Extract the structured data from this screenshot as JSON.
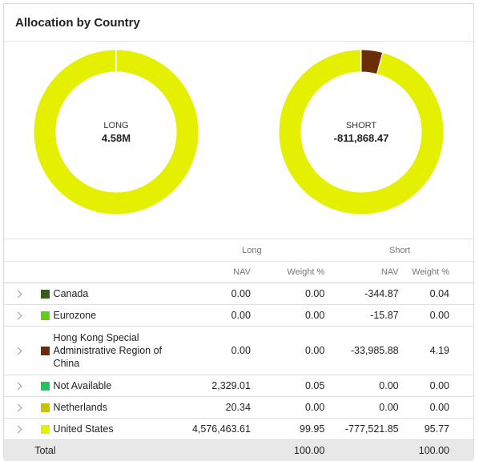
{
  "title": "Allocation by Country",
  "charts": {
    "long": {
      "label": "LONG",
      "value": "4.58M",
      "color": "#e5f000",
      "slices": [
        {
          "country": "United States",
          "weight": 99.95,
          "color": "#e5f000"
        },
        {
          "country": "Not Available",
          "weight": 0.05,
          "color": "#1fc75a"
        }
      ]
    },
    "short": {
      "label": "SHORT",
      "value": "-811,868.47",
      "slices": [
        {
          "country": "Hong Kong Special Administrative Region of China",
          "weight": 4.19,
          "color": "#6b2d05"
        },
        {
          "country": "United States",
          "weight": 95.77,
          "color": "#e5f000"
        },
        {
          "country": "Canada",
          "weight": 0.04,
          "color": "#355e1c"
        }
      ]
    }
  },
  "table": {
    "groups": {
      "long": "Long",
      "short": "Short"
    },
    "columns": {
      "nav": "NAV",
      "weight": "Weight %"
    },
    "rows": [
      {
        "name": "Canada",
        "color": "#355e1c",
        "long_nav": "0.00",
        "long_weight": "0.00",
        "short_nav": "-344.87",
        "short_weight": "0.04"
      },
      {
        "name": "Eurozone",
        "color": "#66cc1a",
        "long_nav": "0.00",
        "long_weight": "0.00",
        "short_nav": "-15.87",
        "short_weight": "0.00"
      },
      {
        "name": "Hong Kong Special Administrative Region of China",
        "color": "#6b2d05",
        "long_nav": "0.00",
        "long_weight": "0.00",
        "short_nav": "-33,985.88",
        "short_weight": "4.19"
      },
      {
        "name": "Not Available",
        "color": "#1fc75a",
        "long_nav": "2,329.01",
        "long_weight": "0.05",
        "short_nav": "0.00",
        "short_weight": "0.00"
      },
      {
        "name": "Netherlands",
        "color": "#c5c400",
        "long_nav": "20.34",
        "long_weight": "0.00",
        "short_nav": "0.00",
        "short_weight": "0.00"
      },
      {
        "name": "United States",
        "color": "#e5f000",
        "long_nav": "4,576,463.61",
        "long_weight": "99.95",
        "short_nav": "-777,521.85",
        "short_weight": "95.77"
      }
    ],
    "total": {
      "label": "Total",
      "long_weight": "100.00",
      "short_weight": "100.00"
    }
  }
}
